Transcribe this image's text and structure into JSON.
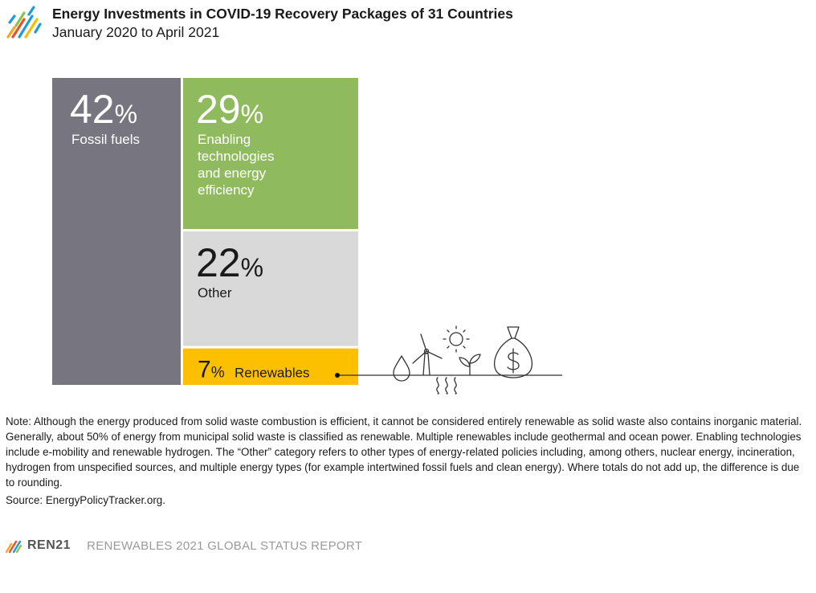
{
  "header": {
    "title": "Energy Investments in COVID-19 Recovery Packages of 31 Countries",
    "subtitle": "January 2020 to April 2021"
  },
  "chart_data": {
    "type": "treemap",
    "unit": "%",
    "items": [
      {
        "value": 42,
        "value_label": "42",
        "label": "Fossil fuels",
        "color": "#777580"
      },
      {
        "value": 29,
        "value_label": "29",
        "label_lines": [
          "Enabling",
          "technologies",
          "and energy",
          "efficiency"
        ],
        "color": "#8fbb5e"
      },
      {
        "value": 22,
        "value_label": "22",
        "label": "Other",
        "color": "#d9d9d9"
      },
      {
        "value": 7,
        "value_label": "7",
        "label": "Renewables",
        "color": "#fcc000"
      }
    ]
  },
  "note": "Note: Although the energy produced from solid waste combustion is efficient, it cannot be considered entirely renewable as solid waste also contains inorganic material. Generally, about 50% of energy from municipal solid waste is classified as renewable. Multiple renewables include geothermal and ocean power. Enabling technologies include e-mobility and renewable hydrogen. The “Other” category refers to other types of energy-related policies including, among others, nuclear energy, incineration, hydrogen from unspecified sources, and multiple energy types (for example intertwined fossil fuels and clean energy). Where totals do not add up, the difference is due to rounding.",
  "source": "Source: EnergyPolicyTracker.org.",
  "footer": {
    "brand": "REN21",
    "report": "RENEWABLES 2021 GLOBAL STATUS REPORT"
  },
  "icons": [
    "ren21-logo-icon",
    "water-drop-icon",
    "wind-turbine-icon",
    "sun-icon",
    "geothermal-heat-icon",
    "plant-sprout-icon",
    "money-bag-icon"
  ]
}
